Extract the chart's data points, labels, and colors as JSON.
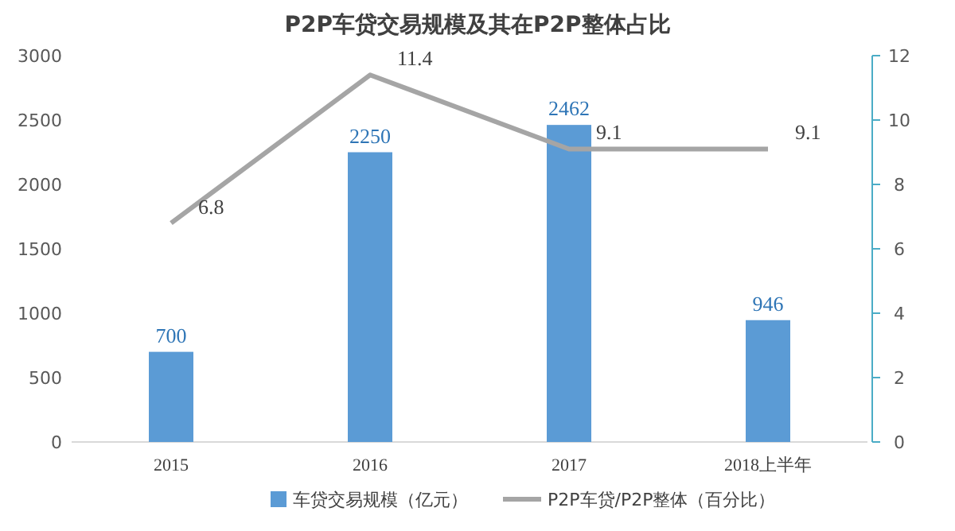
{
  "chart_data": {
    "type": "bar",
    "title": "P2P车贷交易规模及其在P2P整体占比",
    "categories": [
      "2015",
      "2016",
      "2017",
      "2018上半年"
    ],
    "series": [
      {
        "name": "车贷交易规模（亿元）",
        "color": "#5b9bd5",
        "values": [
          700,
          2250,
          2462,
          946
        ]
      },
      {
        "name": "P2P车贷/P2P整体（百分比）",
        "type": "line",
        "axis": "y2",
        "color": "#a5a5a5",
        "values": [
          6.8,
          11.4,
          9.1,
          9.1
        ]
      }
    ],
    "ylim": [
      0,
      3000
    ],
    "yticks": [
      0,
      500,
      1000,
      1500,
      2000,
      2500,
      3000
    ],
    "y2lim": [
      0,
      12
    ],
    "y2ticks": [
      0,
      2,
      4,
      6,
      8,
      10,
      12
    ],
    "data_labels": true,
    "legend": "bottom",
    "grid": false
  }
}
